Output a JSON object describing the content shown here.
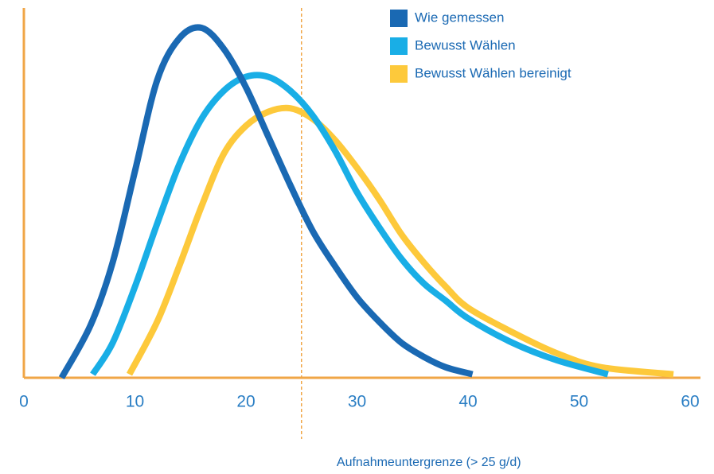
{
  "chart_data": {
    "type": "line",
    "xlim": [
      0,
      60
    ],
    "xticks": [
      0,
      10,
      20,
      30,
      40,
      50,
      60
    ],
    "ylim": [
      0,
      100
    ],
    "legend": "upper right",
    "annotation": {
      "text": "Aufnahmeuntergrenze (> 25 g/d)",
      "x": 25
    },
    "series": [
      {
        "name": "Wie gemessen",
        "color": "#1a69b3",
        "x": [
          3.4,
          6,
          8,
          10,
          12,
          14,
          16,
          18,
          20,
          22,
          24,
          26,
          28,
          30,
          32,
          34,
          36,
          38,
          40.4
        ],
        "values": [
          0,
          15,
          33,
          59,
          85,
          97,
          100,
          94,
          83,
          69,
          55,
          42,
          32,
          23,
          16,
          10,
          6,
          3,
          1
        ]
      },
      {
        "name": "Bewusst Wählen",
        "color": "#19aee6",
        "x": [
          6.2,
          8,
          10,
          12,
          14,
          16,
          18,
          20,
          22,
          24,
          26,
          28,
          30,
          32,
          34,
          36,
          38,
          40,
          44,
          48,
          52.6
        ],
        "values": [
          1,
          10,
          26,
          44,
          61,
          74,
          82,
          86,
          86,
          82,
          75,
          65,
          53,
          43,
          34,
          27,
          22,
          17,
          10,
          5,
          1
        ]
      },
      {
        "name": "Bewusst Wählen bereinigt",
        "color": "#fdc93b",
        "x": [
          9.5,
          12,
          14,
          16,
          18,
          20,
          22,
          24,
          26,
          28,
          30,
          32,
          34,
          36,
          38,
          40,
          44,
          48,
          52,
          58.5
        ],
        "values": [
          1,
          16,
          32,
          49,
          64,
          72,
          76,
          77,
          74,
          68,
          60,
          51,
          41,
          33,
          26,
          20,
          13,
          7,
          3,
          1
        ]
      }
    ]
  }
}
